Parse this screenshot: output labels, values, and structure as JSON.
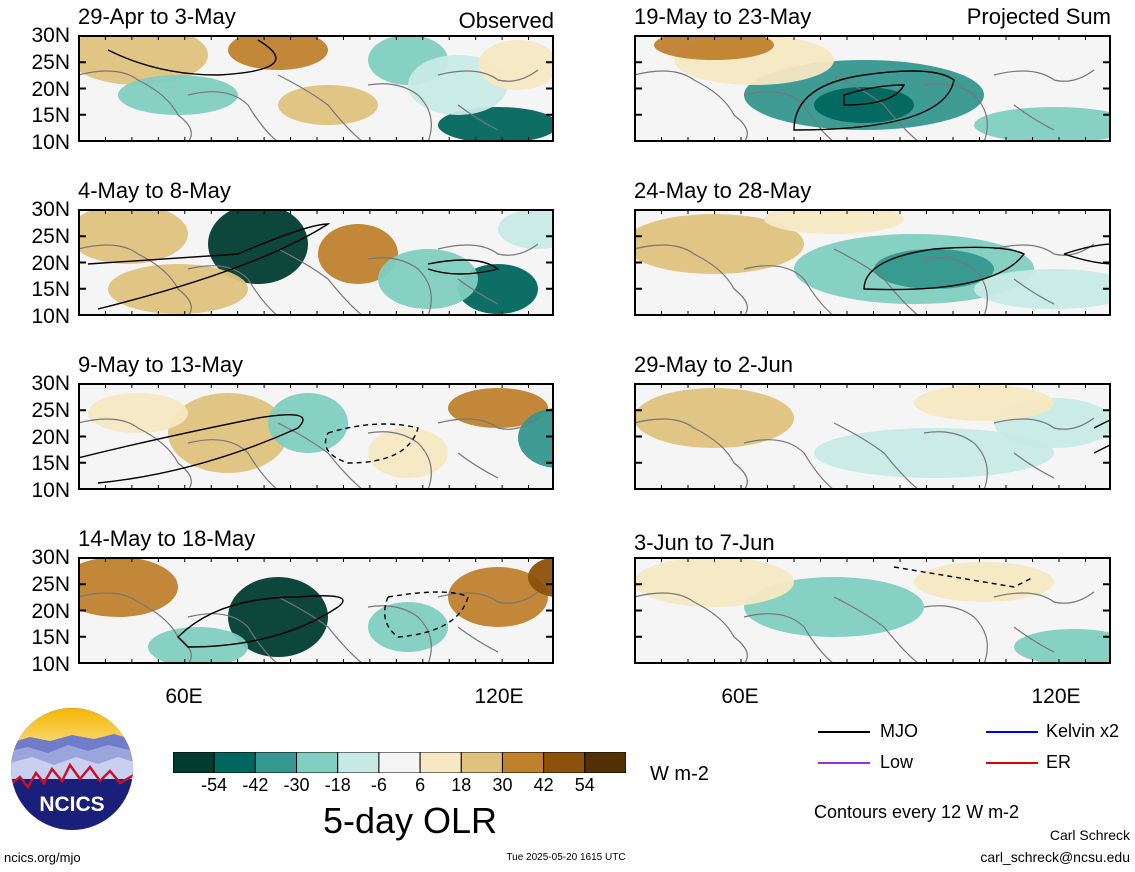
{
  "header": {
    "observed_label": "Observed",
    "projected_label": "Projected Sum"
  },
  "latitude_ticks": [
    "30N",
    "25N",
    "20N",
    "15N",
    "10N"
  ],
  "longitude_ticks": [
    "60E",
    "120E"
  ],
  "panels": {
    "observed": [
      {
        "title": "29-Apr to 3-May"
      },
      {
        "title": "4-May to 8-May"
      },
      {
        "title": "9-May to 13-May"
      },
      {
        "title": "14-May to 18-May"
      }
    ],
    "projected": [
      {
        "title": "19-May to 23-May"
      },
      {
        "title": "24-May to 28-May"
      },
      {
        "title": "29-May to 2-Jun"
      },
      {
        "title": "3-Jun to 7-Jun"
      }
    ]
  },
  "colorbar": {
    "title": "5-day OLR",
    "units": "W m-2",
    "tick_labels": [
      "-54",
      "-42",
      "-30",
      "-18",
      "-6",
      "6",
      "18",
      "30",
      "42",
      "54"
    ],
    "colors": [
      "#003c30",
      "#01665e",
      "#35978f",
      "#80cdc1",
      "#c7eae5",
      "#f5f5f5",
      "#f6e8c3",
      "#dfc27d",
      "#bf812d",
      "#8c510a",
      "#543005"
    ]
  },
  "legend": {
    "items": [
      {
        "label": "MJO",
        "color": "#000000"
      },
      {
        "label": "Kelvin x2",
        "color": "#0000ff"
      },
      {
        "label": "Low",
        "color": "#9b30d0"
      },
      {
        "label": "ER",
        "color": "#e00000"
      }
    ],
    "contour_note": "Contours every 12 W m-2"
  },
  "footer": {
    "logo_text": "NCICS",
    "site": "ncics.org/mjo",
    "timestamp": "Tue 2025-05-20 1615 UTC",
    "author": "Carl Schreck",
    "email": "carl_schreck@ncsu.edu"
  }
}
